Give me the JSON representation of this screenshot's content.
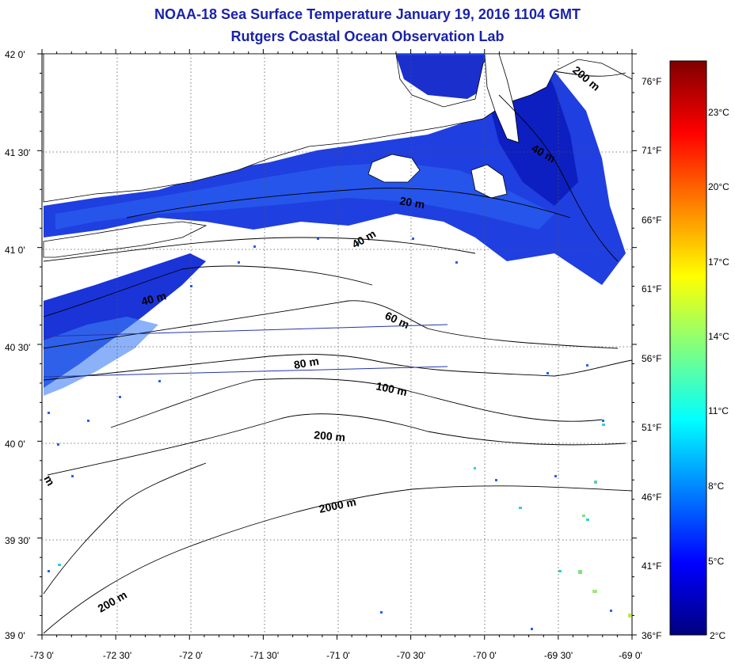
{
  "header": {
    "title": "NOAA-18 Sea Surface Temperature January 19, 2016 1104 GMT",
    "subtitle": "Rutgers Coastal Ocean Observation Lab"
  },
  "map": {
    "lon_ticks": [
      "-73 0'",
      "-72 30'",
      "-72 0'",
      "-71 30'",
      "-71 0'",
      "-70 30'",
      "-70 0'",
      "-69 30'",
      "-69 0'"
    ],
    "lat_ticks": [
      "42 0'",
      "41 30'",
      "41 0'",
      "40 30'",
      "40 0'",
      "39 30'",
      "39 0'"
    ],
    "grid": true,
    "sst_colors": [
      "#0d0f9a",
      "#1a34d8",
      "#2a5ff0",
      "#3d7ff5",
      "#1f4fe6"
    ],
    "land_color": "#ffffff",
    "coast_color": "#000000",
    "contours": [
      {
        "label": "20 m"
      },
      {
        "label": "40 m"
      },
      {
        "label": "40 m"
      },
      {
        "label": "40 m"
      },
      {
        "label": "60 m"
      },
      {
        "label": "80 m"
      },
      {
        "label": "100 m"
      },
      {
        "label": "200 m"
      },
      {
        "label": "200 m"
      },
      {
        "label": "200 m"
      },
      {
        "label": "2000 m"
      },
      {
        "label": "m"
      }
    ]
  },
  "colorbar": {
    "celsius": [
      "23°C",
      "20°C",
      "17°C",
      "14°C",
      "11°C",
      "8°C",
      "5°C",
      "2°C"
    ],
    "fahrenheit": [
      "76°F",
      "71°F",
      "66°F",
      "61°F",
      "56°F",
      "51°F",
      "46°F",
      "41°F",
      "36°F"
    ],
    "stops": [
      "#00007f",
      "#0000ff",
      "#0080ff",
      "#00ffff",
      "#80ff80",
      "#ffff00",
      "#ff8000",
      "#ff0000",
      "#7f0000"
    ]
  }
}
